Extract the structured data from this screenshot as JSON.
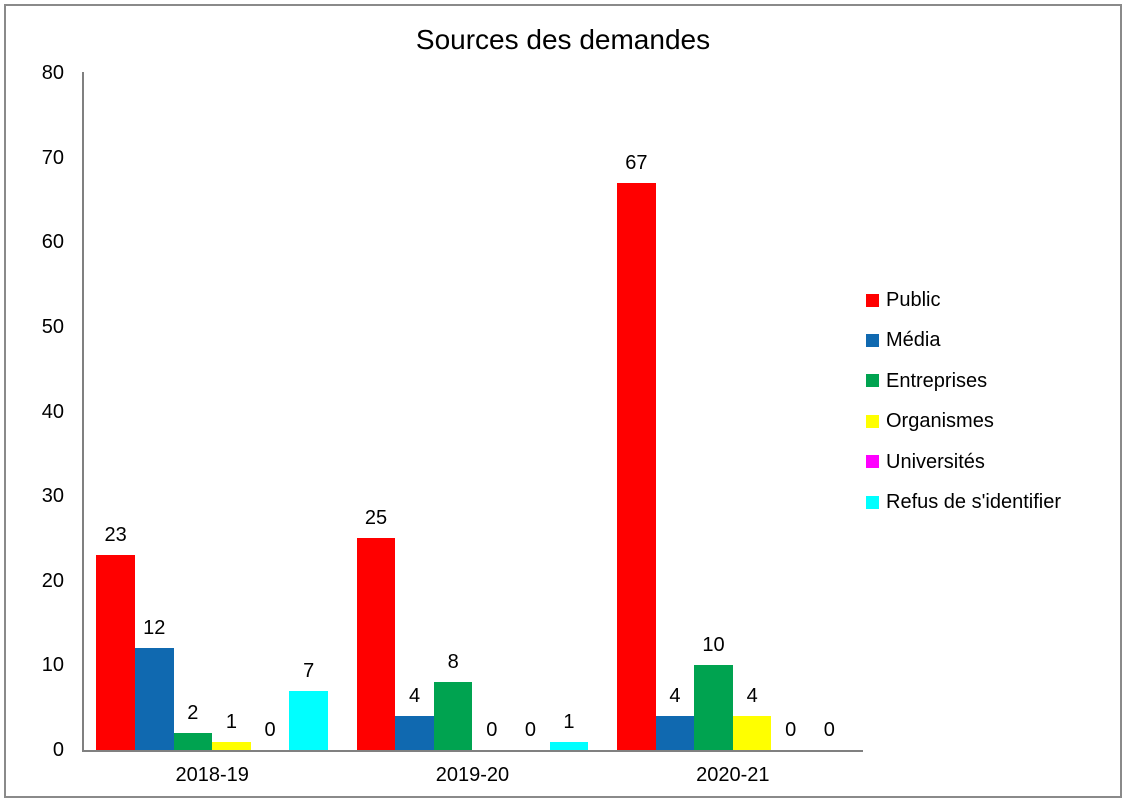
{
  "chart_data": {
    "type": "bar",
    "title": "Sources des demandes",
    "categories": [
      "2018-19",
      "2019-20",
      "2020-21"
    ],
    "series": [
      {
        "name": "Public",
        "color": "#ff0000",
        "values": [
          23,
          25,
          67
        ]
      },
      {
        "name": "Média",
        "color": "#1069b0",
        "values": [
          12,
          4,
          4
        ]
      },
      {
        "name": "Entreprises",
        "color": "#00a350",
        "values": [
          2,
          8,
          10
        ]
      },
      {
        "name": "Organismes",
        "color": "#ffff00",
        "values": [
          1,
          0,
          4
        ]
      },
      {
        "name": "Universités",
        "color": "#ff00ff",
        "values": [
          0,
          0,
          0
        ]
      },
      {
        "name": "Refus de s'identifier",
        "color": "#00ffff",
        "values": [
          7,
          1,
          0
        ]
      }
    ],
    "ylim": [
      0,
      80
    ],
    "yticks": [
      0,
      10,
      20,
      30,
      40,
      50,
      60,
      70,
      80
    ],
    "grid": false,
    "data_labels": true,
    "legend_position": "right",
    "xlabel": "",
    "ylabel": ""
  },
  "colors": {
    "axis": "#808080",
    "frame_border": "#8a8a8a",
    "text": "#000000",
    "background": "#ffffff"
  }
}
